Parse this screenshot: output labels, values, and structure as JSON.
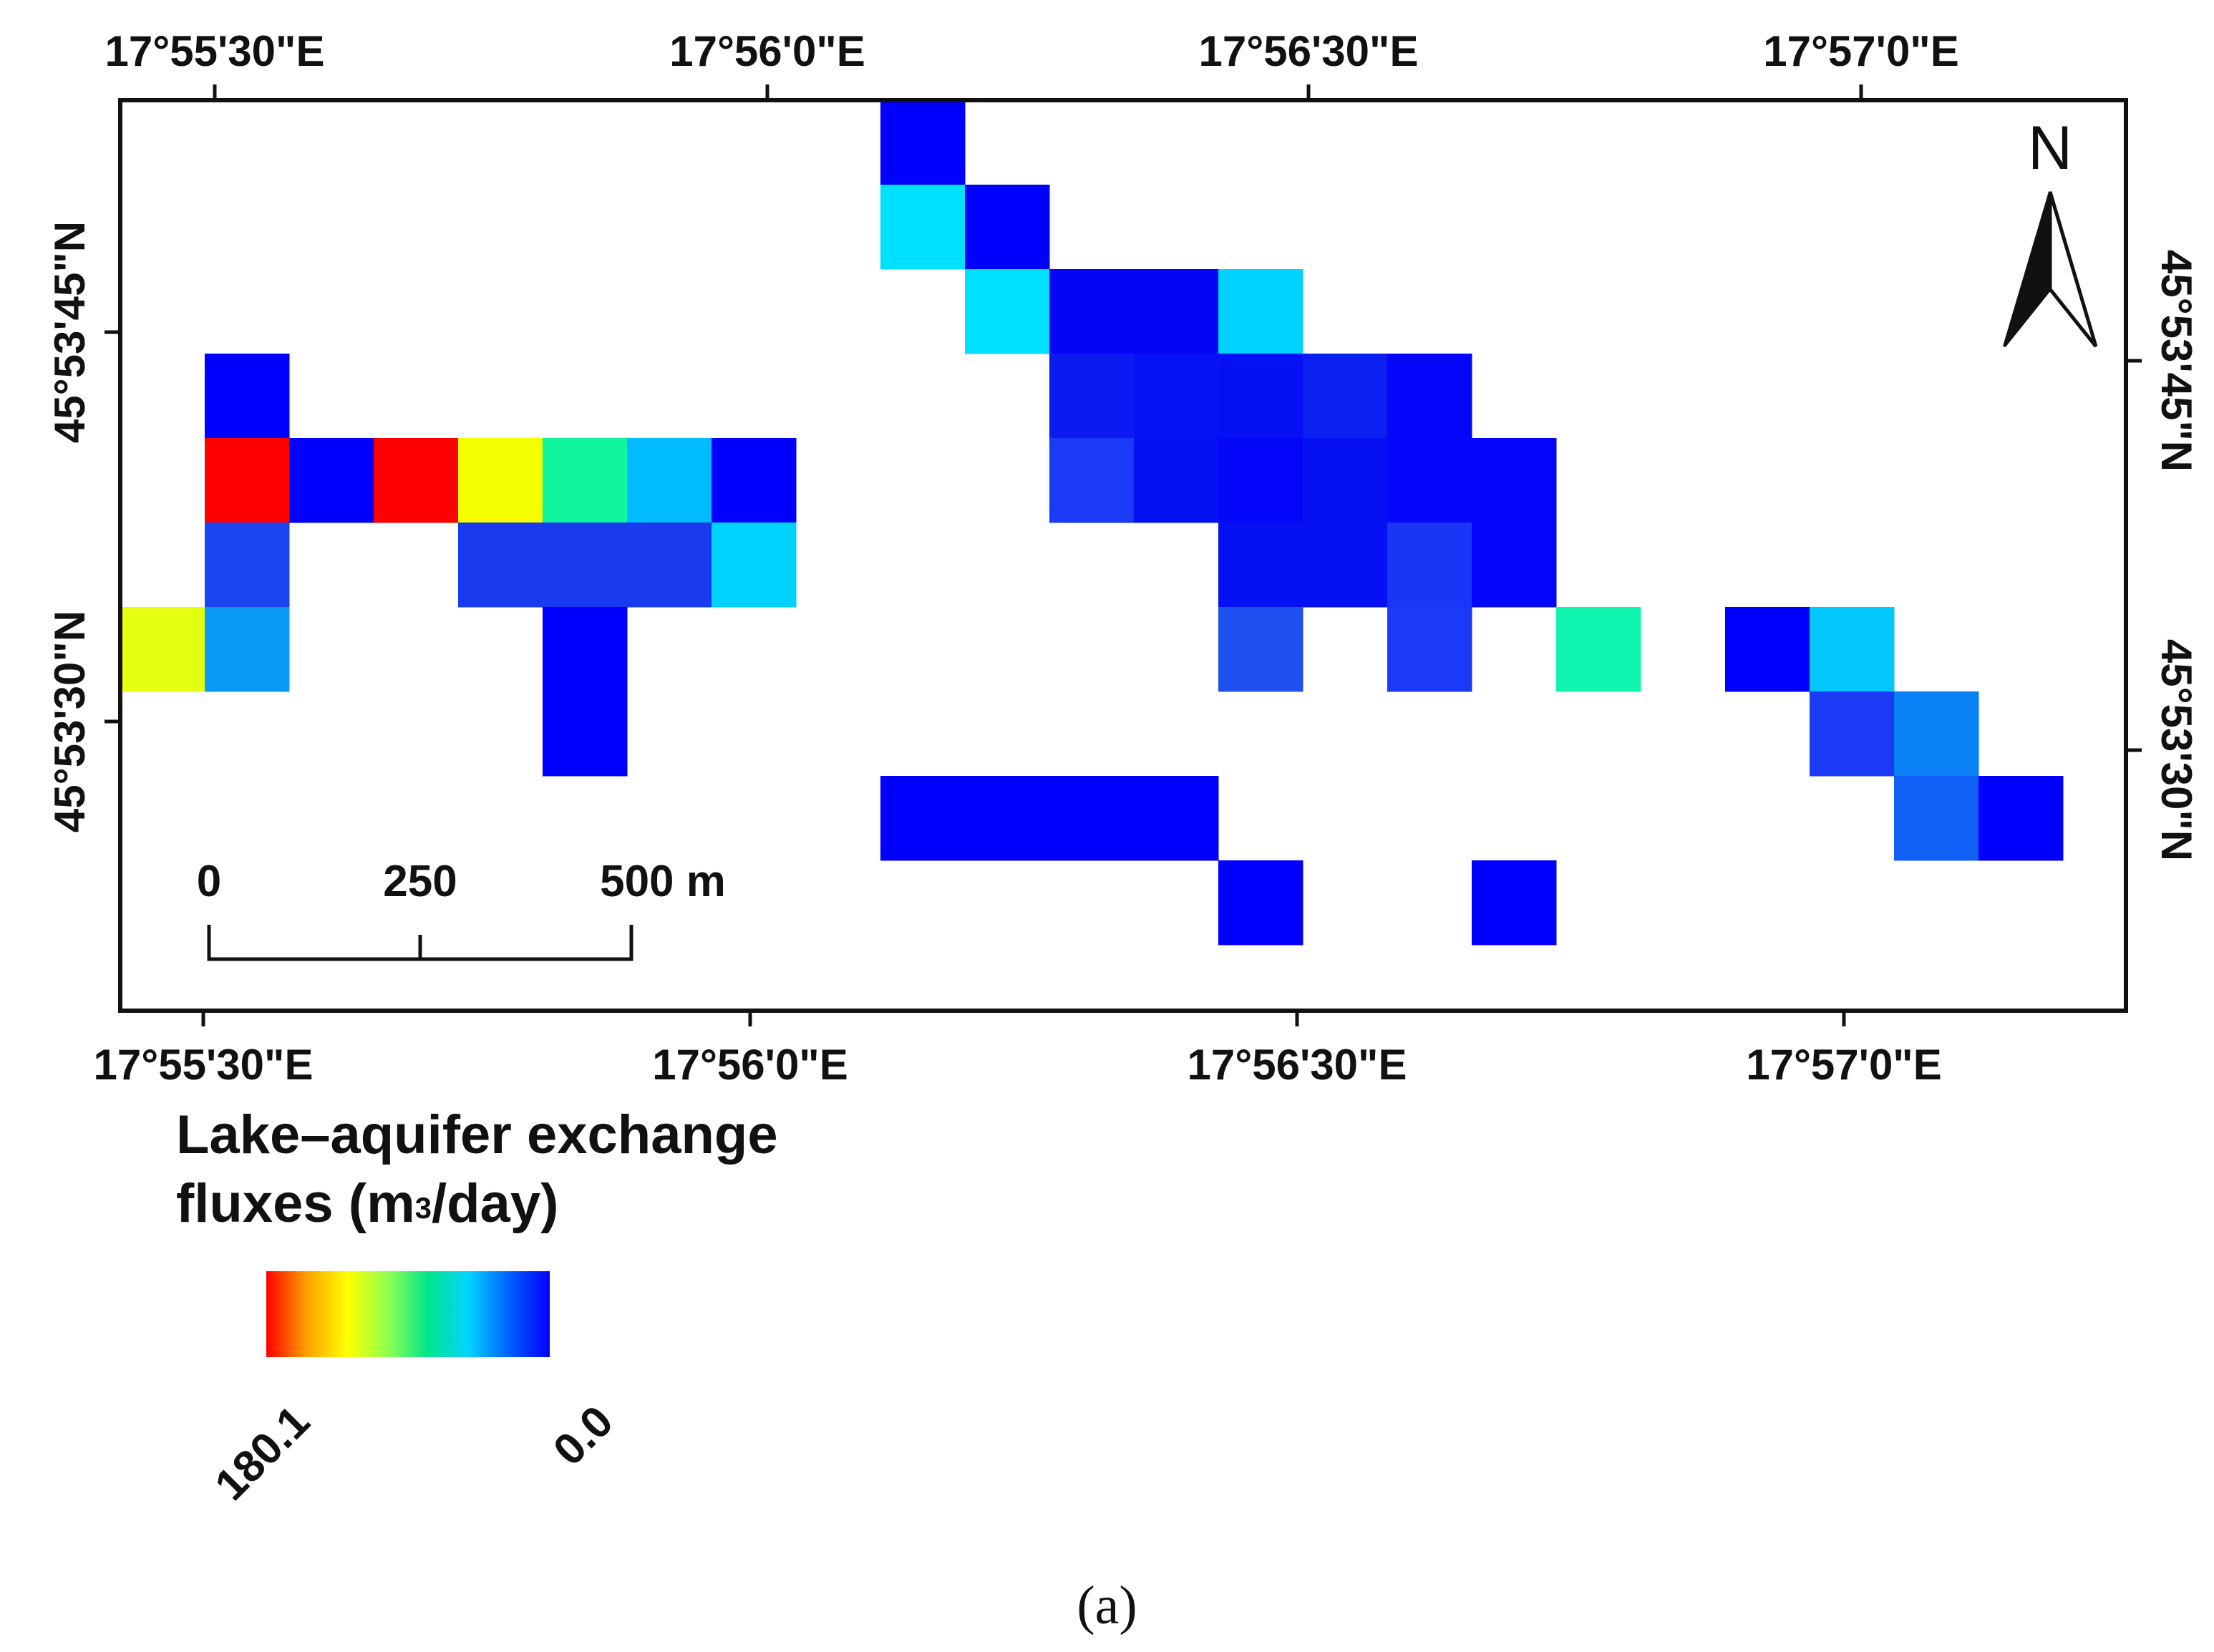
{
  "map": {
    "top_lon_labels": [
      "17°55'30\"E",
      "17°56'0\"E",
      "17°56'30\"E",
      "17°57'0\"E"
    ],
    "bottom_lon_labels": [
      "17°55'30\"E",
      "17°56'0\"E",
      "17°56'30\"E",
      "17°57'0\"E"
    ],
    "left_lat_labels": [
      "45°53'45\"N",
      "45°53'30\"N"
    ],
    "right_lat_labels": [
      "45°53'45\"N",
      "45°53'30\"N"
    ],
    "north_label": "N",
    "scale_bar": {
      "labels": [
        "0",
        "250",
        "500 m"
      ],
      "ticks_m": [
        0,
        250,
        500
      ]
    }
  },
  "grid_cells": [
    {
      "col": 9,
      "row": 0,
      "value": 0.0,
      "color": "#0000ff"
    },
    {
      "col": 9,
      "row": 1,
      "value": 60.0,
      "color": "#00e1ff"
    },
    {
      "col": 10,
      "row": 1,
      "value": 0.0,
      "color": "#0000ff"
    },
    {
      "col": 10,
      "row": 2,
      "value": 60.0,
      "color": "#00e1ff"
    },
    {
      "col": 11,
      "row": 2,
      "value": 4.0,
      "color": "#0505f5"
    },
    {
      "col": 12,
      "row": 2,
      "value": 4.0,
      "color": "#0505f5"
    },
    {
      "col": 13,
      "row": 2,
      "value": 55.0,
      "color": "#00d2ff"
    },
    {
      "col": 11,
      "row": 3,
      "value": 8.0,
      "color": "#0a1af0"
    },
    {
      "col": 12,
      "row": 3,
      "value": 6.0,
      "color": "#0512f5"
    },
    {
      "col": 13,
      "row": 3,
      "value": 5.0,
      "color": "#0510f5"
    },
    {
      "col": 14,
      "row": 3,
      "value": 10.0,
      "color": "#0a20f0"
    },
    {
      "col": 15,
      "row": 3,
      "value": 3.0,
      "color": "#0505f8"
    },
    {
      "col": 1,
      "row": 3,
      "value": 0.0,
      "color": "#0000ff"
    },
    {
      "col": 1,
      "row": 4,
      "value": 180.1,
      "color": "#ff0000"
    },
    {
      "col": 2,
      "row": 4,
      "value": 0.0,
      "color": "#0000ff"
    },
    {
      "col": 3,
      "row": 4,
      "value": 180.1,
      "color": "#ff0000"
    },
    {
      "col": 4,
      "row": 4,
      "value": 135.0,
      "color": "#f5ff00"
    },
    {
      "col": 5,
      "row": 4,
      "value": 85.0,
      "color": "#10f5a0"
    },
    {
      "col": 6,
      "row": 4,
      "value": 50.0,
      "color": "#00bbff"
    },
    {
      "col": 7,
      "row": 4,
      "value": 0.0,
      "color": "#0000ff"
    },
    {
      "col": 11,
      "row": 4,
      "value": 15.0,
      "color": "#1a3af5"
    },
    {
      "col": 12,
      "row": 4,
      "value": 5.0,
      "color": "#0510f5"
    },
    {
      "col": 13,
      "row": 4,
      "value": 3.0,
      "color": "#0508f8"
    },
    {
      "col": 14,
      "row": 4,
      "value": 5.0,
      "color": "#0510f5"
    },
    {
      "col": 15,
      "row": 4,
      "value": 3.0,
      "color": "#0508f8"
    },
    {
      "col": 16,
      "row": 4,
      "value": 2.0,
      "color": "#0505fa"
    },
    {
      "col": 1,
      "row": 5,
      "value": 15.0,
      "color": "#1a45f0"
    },
    {
      "col": 4,
      "row": 5,
      "value": 13.0,
      "color": "#1a3af0"
    },
    {
      "col": 5,
      "row": 5,
      "value": 13.0,
      "color": "#1a3af0"
    },
    {
      "col": 6,
      "row": 5,
      "value": 13.0,
      "color": "#1a3af0"
    },
    {
      "col": 7,
      "row": 5,
      "value": 60.0,
      "color": "#00d2ff"
    },
    {
      "col": 13,
      "row": 5,
      "value": 4.0,
      "color": "#0510f5"
    },
    {
      "col": 14,
      "row": 5,
      "value": 5.0,
      "color": "#0510f5"
    },
    {
      "col": 15,
      "row": 5,
      "value": 12.0,
      "color": "#1a35f5"
    },
    {
      "col": 16,
      "row": 5,
      "value": 2.0,
      "color": "#0505fa"
    },
    {
      "col": 0,
      "row": 6,
      "value": 130.0,
      "color": "#e5ff10"
    },
    {
      "col": 1,
      "row": 6,
      "value": 40.0,
      "color": "#0a9af5"
    },
    {
      "col": 5,
      "row": 6,
      "value": 0.0,
      "color": "#0000ff"
    },
    {
      "col": 13,
      "row": 6,
      "value": 20.0,
      "color": "#2050f0"
    },
    {
      "col": 15,
      "row": 6,
      "value": 14.0,
      "color": "#1a3af5"
    },
    {
      "col": 17,
      "row": 6,
      "value": 85.0,
      "color": "#10f5b0"
    },
    {
      "col": 19,
      "row": 6,
      "value": 0.0,
      "color": "#0000ff"
    },
    {
      "col": 20,
      "row": 6,
      "value": 55.0,
      "color": "#00c8ff"
    },
    {
      "col": 5,
      "row": 7,
      "value": 0.0,
      "color": "#0000ff"
    },
    {
      "col": 20,
      "row": 7,
      "value": 14.0,
      "color": "#1a3af5"
    },
    {
      "col": 21,
      "row": 7,
      "value": 30.0,
      "color": "#0a80f5"
    },
    {
      "col": 9,
      "row": 8,
      "value": 0.0,
      "color": "#0000ff"
    },
    {
      "col": 10,
      "row": 8,
      "value": 0.0,
      "color": "#0000ff"
    },
    {
      "col": 11,
      "row": 8,
      "value": 0.0,
      "color": "#0000ff"
    },
    {
      "col": 12,
      "row": 8,
      "value": 0.0,
      "color": "#0000ff"
    },
    {
      "col": 21,
      "row": 8,
      "value": 25.0,
      "color": "#1060f5"
    },
    {
      "col": 22,
      "row": 8,
      "value": 0.0,
      "color": "#0000ff"
    },
    {
      "col": 13,
      "row": 9,
      "value": 0.0,
      "color": "#0000ff"
    },
    {
      "col": 16,
      "row": 9,
      "value": 0.0,
      "color": "#0000ff"
    }
  ],
  "legend": {
    "title_line1": "Lake–aquifer exchange",
    "title_line2_prefix": "fluxes (m",
    "title_sup": "3",
    "title_line2_suffix": "/day)",
    "max_label": "180.1",
    "min_label": "0.0",
    "max_value": 180.1,
    "min_value": 0.0,
    "gradient_colors": [
      "#ff0000",
      "#ffa000",
      "#ffff00",
      "#90ff50",
      "#00e58a",
      "#00d4ff",
      "#0060ff",
      "#0000ff"
    ]
  },
  "caption": "(a)"
}
